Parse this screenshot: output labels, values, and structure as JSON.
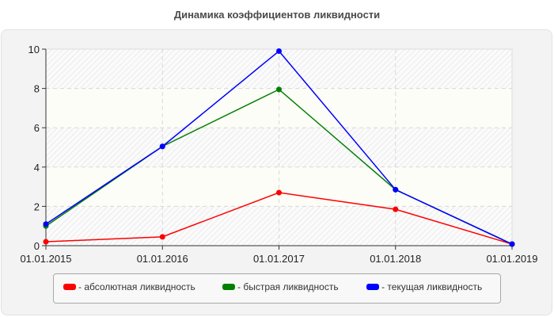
{
  "chart_data": {
    "type": "line",
    "title": "Динамика коэффициентов ликвидности",
    "xlabel": "",
    "ylabel": "",
    "categories": [
      "01.01.2015",
      "01.01.2016",
      "01.01.2017",
      "01.01.2018",
      "01.01.2019"
    ],
    "ylim": [
      0,
      10
    ],
    "yticks": [
      0,
      2,
      4,
      6,
      8,
      10
    ],
    "grid": true,
    "legend_position": "bottom",
    "series": [
      {
        "name": "- абсолютная ликвидность",
        "color": "#ff0000",
        "values": [
          0.2,
          0.45,
          2.7,
          1.85,
          0.08
        ]
      },
      {
        "name": "- быстрая ликвидность",
        "color": "#008000",
        "values": [
          1.0,
          5.05,
          7.95,
          2.85,
          0.08
        ]
      },
      {
        "name": "- текущая ликвидность",
        "color": "#0000ff",
        "values": [
          1.1,
          5.05,
          9.9,
          2.85,
          0.08
        ]
      }
    ]
  }
}
